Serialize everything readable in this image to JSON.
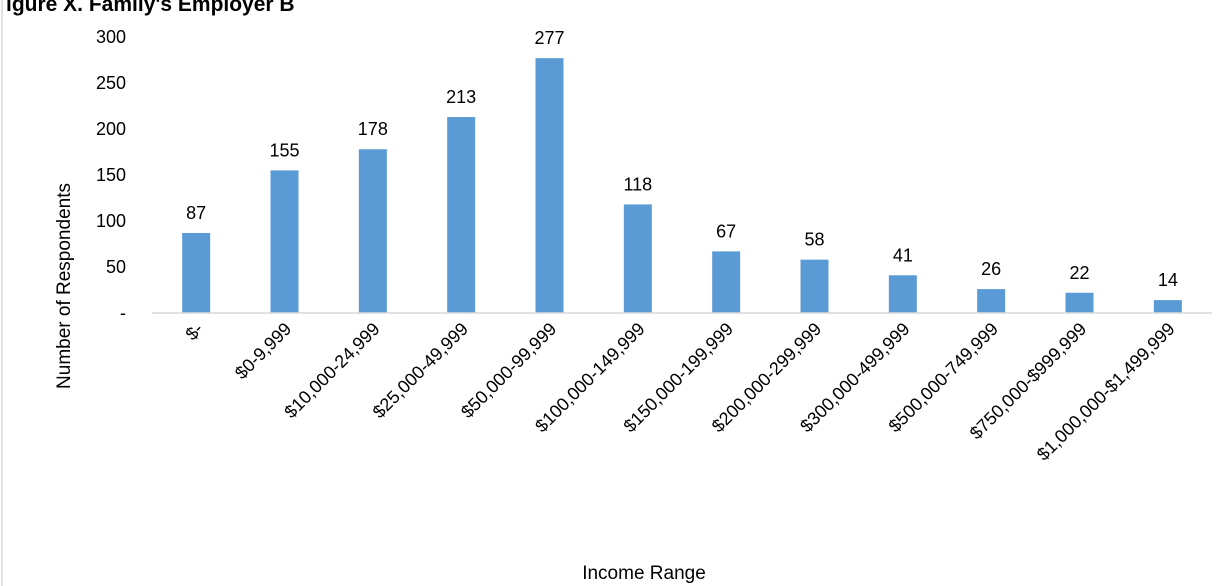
{
  "chart_data": {
    "type": "bar",
    "title": "",
    "title_fragment": "igure X. Family's Employer B",
    "xlabel": "Income Range",
    "ylabel": "Number of Respondents",
    "ylim": [
      0,
      300
    ],
    "yticks": [
      {
        "value": 0,
        "label": "-"
      },
      {
        "value": 50,
        "label": "50"
      },
      {
        "value": 100,
        "label": "100"
      },
      {
        "value": 150,
        "label": "150"
      },
      {
        "value": 200,
        "label": "200"
      },
      {
        "value": 250,
        "label": "250"
      },
      {
        "value": 300,
        "label": "300"
      }
    ],
    "categories": [
      "$-",
      "$0-9,999",
      "$10,000-24,999",
      "$25,000-49,999",
      "$50,000-99,999",
      "$100,000-149,999",
      "$150,000-199,999",
      "$200,000-299,999",
      "$300,000-499,999",
      "$500,000-749,999",
      "$750,000-$999,999",
      "$1,000,000-$1,499,999"
    ],
    "values": [
      87,
      155,
      178,
      213,
      277,
      118,
      67,
      58,
      41,
      26,
      22,
      14
    ],
    "data_labels": [
      "87",
      "155",
      "178",
      "213",
      "277",
      "118",
      "67",
      "58",
      "41",
      "26",
      "22",
      "14"
    ],
    "bar_color": "#5B9BD5",
    "axis_color": "#D9D9D9",
    "grid": false,
    "legend": "none"
  }
}
